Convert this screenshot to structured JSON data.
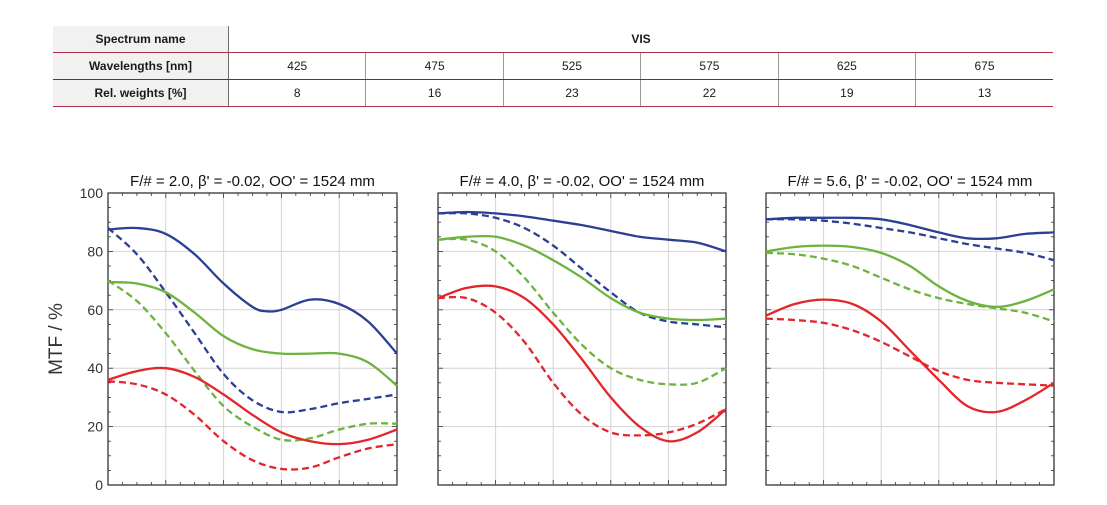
{
  "spectrum_table": {
    "header_label": "Spectrum name",
    "spectrum_name": "VIS",
    "wavelengths_label": "Wavelengths [nm]",
    "wavelengths": [
      "425",
      "475",
      "525",
      "575",
      "625",
      "675"
    ],
    "weights_label": "Rel. weights [%]",
    "weights": [
      "8",
      "16",
      "23",
      "22",
      "19",
      "13"
    ]
  },
  "colors": {
    "blue": "#2b3f93",
    "green": "#6cb33f",
    "red": "#e3262b",
    "accent_line": "#b0304a"
  },
  "chart_data": [
    {
      "type": "line",
      "title": "F/# = 2.0, β' = -0.02, OO' = 1524 mm",
      "ylabel": "MTF / %",
      "ylim": [
        0,
        100
      ],
      "yticks": [
        "0",
        "20",
        "40",
        "60",
        "80",
        "100"
      ],
      "xlim": [
        0,
        1
      ],
      "grid": true,
      "series": [
        {
          "color": "blue",
          "style": "solid",
          "x": [
            0,
            0.1,
            0.2,
            0.3,
            0.4,
            0.5,
            0.55,
            0.6,
            0.7,
            0.8,
            0.9,
            1.0
          ],
          "values": [
            87.5,
            88,
            86,
            79,
            69,
            61,
            59.5,
            60,
            63.5,
            62,
            56,
            45
          ]
        },
        {
          "color": "blue",
          "style": "dashed",
          "x": [
            0,
            0.1,
            0.2,
            0.3,
            0.4,
            0.5,
            0.6,
            0.7,
            0.8,
            0.9,
            1.0
          ],
          "values": [
            88,
            79,
            66,
            52,
            38,
            29,
            25,
            26,
            28,
            29.5,
            31
          ]
        },
        {
          "color": "green",
          "style": "solid",
          "x": [
            0,
            0.1,
            0.2,
            0.3,
            0.4,
            0.5,
            0.6,
            0.7,
            0.8,
            0.9,
            1.0
          ],
          "values": [
            69.5,
            69,
            66,
            59,
            51,
            46.5,
            45,
            45,
            45,
            42,
            34
          ]
        },
        {
          "color": "green",
          "style": "dashed",
          "x": [
            0,
            0.1,
            0.2,
            0.3,
            0.4,
            0.5,
            0.6,
            0.7,
            0.8,
            0.9,
            1.0
          ],
          "values": [
            70,
            63,
            52,
            39,
            27,
            20,
            15.5,
            16,
            19,
            21,
            21
          ]
        },
        {
          "color": "red",
          "style": "solid",
          "x": [
            0,
            0.1,
            0.2,
            0.3,
            0.4,
            0.5,
            0.6,
            0.7,
            0.8,
            0.9,
            1.0
          ],
          "values": [
            36,
            39,
            40,
            37,
            31,
            24,
            18,
            15,
            14,
            15.5,
            19
          ]
        },
        {
          "color": "red",
          "style": "dashed",
          "x": [
            0,
            0.1,
            0.2,
            0.3,
            0.4,
            0.5,
            0.6,
            0.7,
            0.8,
            0.9,
            1.0
          ],
          "values": [
            35.5,
            34.5,
            31,
            24,
            15,
            8.5,
            5.5,
            6,
            9.5,
            12.5,
            14
          ]
        }
      ]
    },
    {
      "type": "line",
      "title": "F/# = 4.0, β' = -0.02, OO' = 1524 mm",
      "ylabel": "",
      "ylim": [
        0,
        100
      ],
      "yticks": [],
      "xlim": [
        0,
        1
      ],
      "grid": true,
      "series": [
        {
          "color": "blue",
          "style": "solid",
          "x": [
            0,
            0.1,
            0.2,
            0.3,
            0.4,
            0.5,
            0.6,
            0.7,
            0.8,
            0.9,
            1.0
          ],
          "values": [
            93,
            93.5,
            93,
            92,
            90.5,
            89,
            87,
            85,
            84,
            83,
            80
          ]
        },
        {
          "color": "blue",
          "style": "dashed",
          "x": [
            0,
            0.1,
            0.2,
            0.3,
            0.4,
            0.5,
            0.6,
            0.7,
            0.8,
            0.9,
            1.0
          ],
          "values": [
            93,
            93,
            91.5,
            88,
            82,
            74,
            66,
            59,
            56,
            55,
            54
          ]
        },
        {
          "color": "green",
          "style": "solid",
          "x": [
            0,
            0.1,
            0.2,
            0.3,
            0.4,
            0.5,
            0.6,
            0.7,
            0.8,
            0.9,
            1.0
          ],
          "values": [
            84,
            85,
            85,
            82,
            77,
            71,
            64,
            59,
            57,
            56.5,
            57
          ]
        },
        {
          "color": "green",
          "style": "dashed",
          "x": [
            0,
            0.1,
            0.2,
            0.3,
            0.4,
            0.5,
            0.6,
            0.7,
            0.8,
            0.9,
            1.0
          ],
          "values": [
            84,
            84,
            80,
            71,
            59,
            48,
            40,
            36,
            34.5,
            35,
            40
          ]
        },
        {
          "color": "red",
          "style": "solid",
          "x": [
            0,
            0.1,
            0.2,
            0.3,
            0.4,
            0.5,
            0.6,
            0.7,
            0.8,
            0.9,
            1.0
          ],
          "values": [
            64,
            67.5,
            68,
            64,
            55,
            43,
            30,
            20,
            15,
            18,
            26
          ]
        },
        {
          "color": "red",
          "style": "dashed",
          "x": [
            0,
            0.1,
            0.2,
            0.3,
            0.4,
            0.5,
            0.6,
            0.7,
            0.8,
            0.9,
            1.0
          ],
          "values": [
            64,
            64,
            59,
            49,
            35,
            24,
            18,
            17,
            18,
            21,
            26
          ]
        }
      ]
    },
    {
      "type": "line",
      "title": "F/# = 5.6, β' = -0.02, OO' = 1524 mm",
      "ylabel": "",
      "ylim": [
        0,
        100
      ],
      "yticks": [],
      "xlim": [
        0,
        1
      ],
      "grid": true,
      "series": [
        {
          "color": "blue",
          "style": "solid",
          "x": [
            0,
            0.1,
            0.2,
            0.3,
            0.4,
            0.5,
            0.6,
            0.7,
            0.8,
            0.9,
            1.0
          ],
          "values": [
            91,
            91.5,
            91.5,
            91.5,
            91,
            89,
            86.5,
            84.5,
            84.5,
            86,
            86.5
          ]
        },
        {
          "color": "blue",
          "style": "dashed",
          "x": [
            0,
            0.1,
            0.2,
            0.3,
            0.4,
            0.5,
            0.6,
            0.7,
            0.8,
            0.9,
            1.0
          ],
          "values": [
            91,
            91,
            90.5,
            89.5,
            88,
            86.5,
            84.5,
            82.5,
            81,
            79.5,
            77
          ]
        },
        {
          "color": "green",
          "style": "solid",
          "x": [
            0,
            0.1,
            0.2,
            0.3,
            0.4,
            0.5,
            0.6,
            0.7,
            0.8,
            0.9,
            1.0
          ],
          "values": [
            80,
            81.5,
            82,
            81.5,
            79.5,
            75,
            68,
            63,
            61,
            63,
            67
          ]
        },
        {
          "color": "green",
          "style": "dashed",
          "x": [
            0,
            0.1,
            0.2,
            0.3,
            0.4,
            0.5,
            0.6,
            0.7,
            0.8,
            0.9,
            1.0
          ],
          "values": [
            79.5,
            79,
            77.5,
            75,
            71,
            67,
            64,
            62,
            60.5,
            59,
            56
          ]
        },
        {
          "color": "red",
          "style": "solid",
          "x": [
            0,
            0.1,
            0.2,
            0.3,
            0.4,
            0.5,
            0.6,
            0.7,
            0.8,
            0.9,
            1.0
          ],
          "values": [
            58,
            62,
            63.5,
            62,
            56,
            46,
            36,
            27,
            25,
            29,
            35
          ]
        },
        {
          "color": "red",
          "style": "dashed",
          "x": [
            0,
            0.1,
            0.2,
            0.3,
            0.4,
            0.5,
            0.6,
            0.7,
            0.8,
            0.9,
            1.0
          ],
          "values": [
            57,
            56.5,
            55.5,
            53,
            49,
            44,
            39,
            36,
            35,
            34.5,
            34
          ]
        }
      ]
    }
  ]
}
